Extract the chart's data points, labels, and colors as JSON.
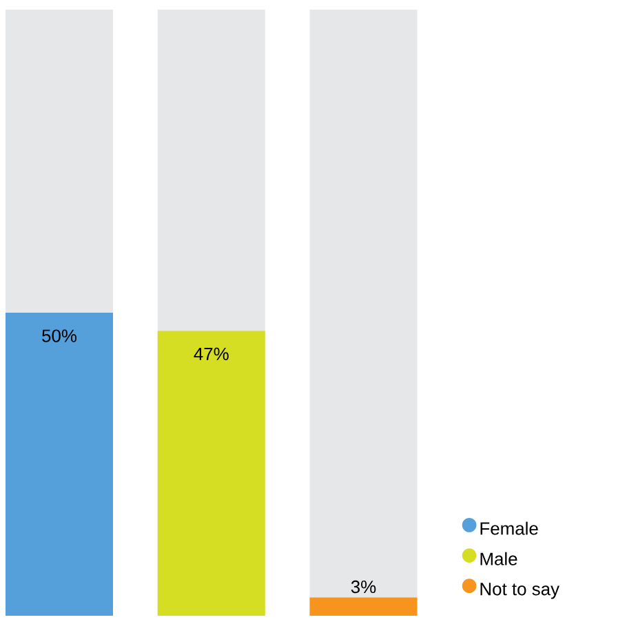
{
  "chart_data": {
    "type": "bar",
    "categories": [
      null,
      null,
      null
    ],
    "series": [
      {
        "name": "Female",
        "color": "#55a0da",
        "values": [
          50,
          null,
          null
        ],
        "value_labels": [
          "50%",
          null,
          null
        ]
      },
      {
        "name": "Male",
        "color": "#d6de23",
        "values": [
          null,
          47,
          null
        ],
        "value_labels": [
          null,
          "47%",
          null
        ]
      },
      {
        "name": "Not to say",
        "color": "#f7941d",
        "values": [
          null,
          null,
          3
        ],
        "value_labels": [
          null,
          null,
          "3%"
        ]
      }
    ],
    "ylim": [
      0,
      100
    ],
    "stacked": true,
    "legend": "bottom right"
  }
}
